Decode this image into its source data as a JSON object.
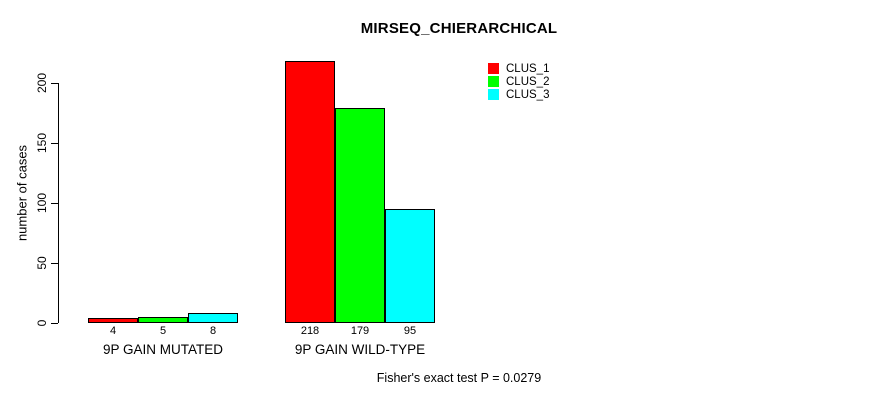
{
  "chart_data": {
    "type": "bar",
    "title": "MIRSEQ_CHIERARCHICAL",
    "ylabel": "number of cases",
    "xlabel": "",
    "categories": [
      "9P GAIN MUTATED",
      "9P GAIN WILD-TYPE"
    ],
    "series": [
      {
        "name": "CLUS_1",
        "color": "#FF0000",
        "values": [
          4,
          218
        ]
      },
      {
        "name": "CLUS_2",
        "color": "#00FF00",
        "values": [
          5,
          179
        ]
      },
      {
        "name": "CLUS_3",
        "color": "#00FFFF",
        "values": [
          8,
          95
        ]
      }
    ],
    "bar_value_labels": [
      [
        "4",
        "5",
        "8"
      ],
      [
        "218",
        "179",
        "95"
      ]
    ],
    "yticks": [
      0,
      50,
      100,
      150,
      200
    ],
    "ylim": [
      0,
      225
    ],
    "grid": false,
    "legend_position": "top-right",
    "legend_entries": [
      "CLUS_1",
      "CLUS_2",
      "CLUS_3"
    ],
    "footnote": "Fisher's exact test P = 0.0279"
  }
}
